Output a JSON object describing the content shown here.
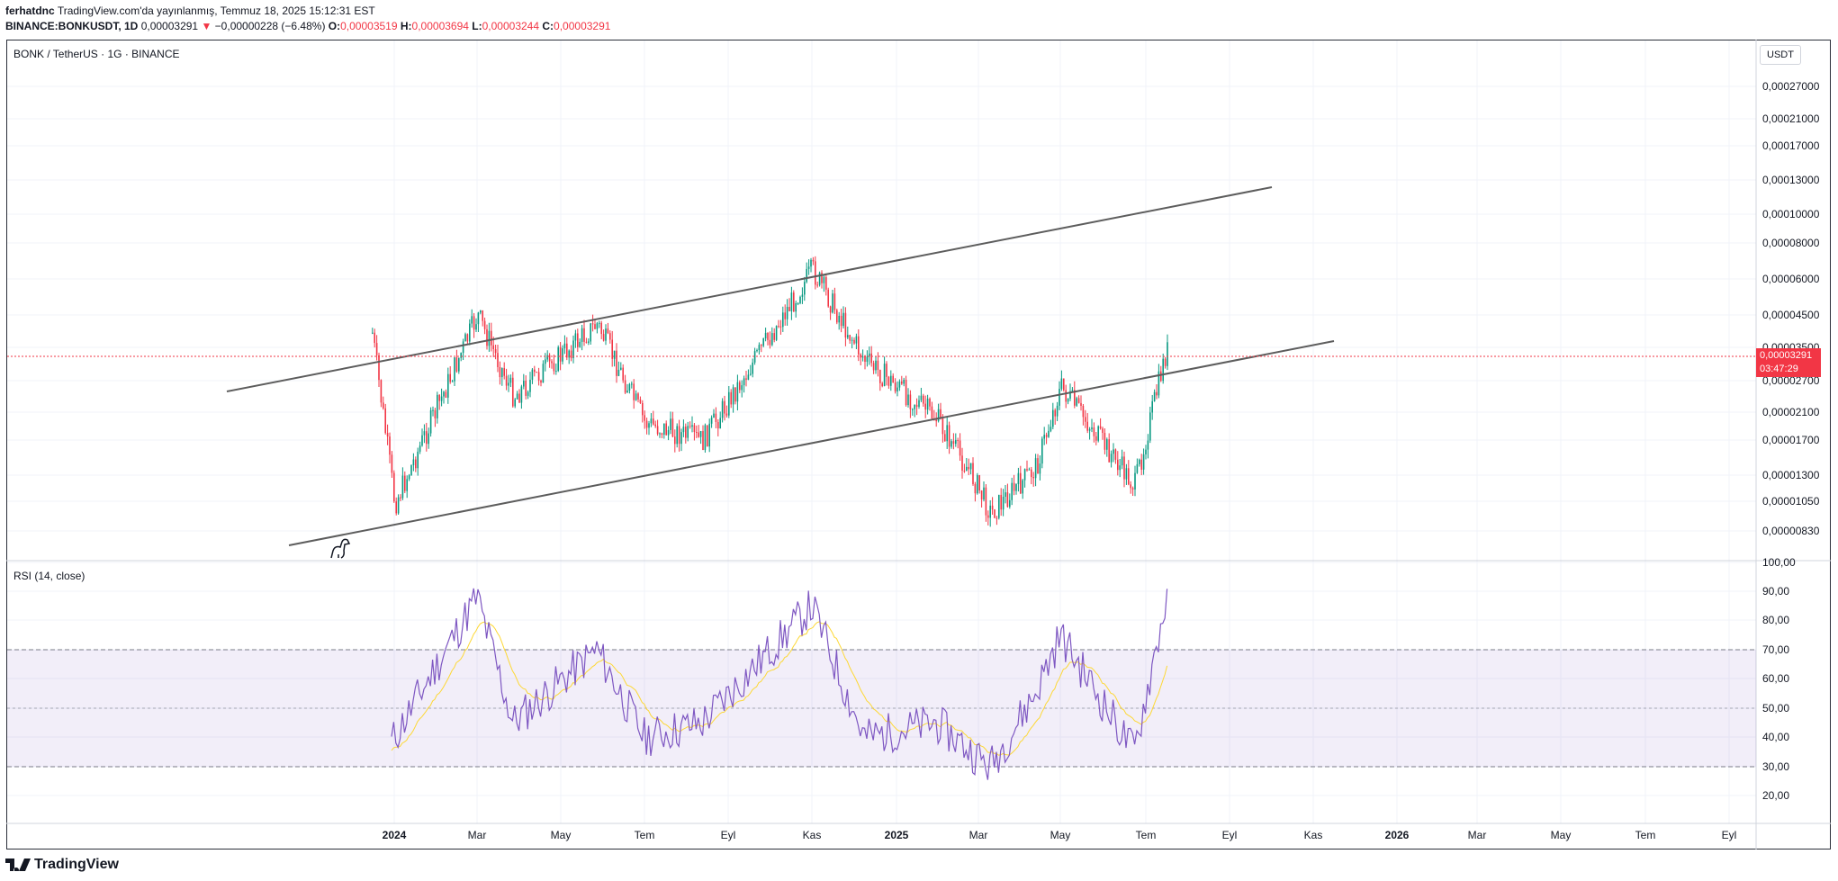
{
  "header": {
    "author": "ferhatdnc",
    "published": "TradingView.com'da yayınlanmış, Temmuz 18, 2025 15:12:31 EST",
    "symbol": "BINANCE:BONKUSDT, 1D",
    "last": "0,00003291",
    "change": "−0,00000228 (−6.48%)",
    "o_label": "O:",
    "o": "0,00003519",
    "h_label": "H:",
    "h": "0,00003694",
    "l_label": "L:",
    "l": "0,00003244",
    "c_label": "C:",
    "c": "0,00003291"
  },
  "chart": {
    "pane_title": "BONK / TetherUS · 1G · BINANCE",
    "currency": "USDT",
    "price_tag": "0,00003291",
    "countdown": "03:47:29",
    "rsi_title": "RSI (14, close)",
    "colors": {
      "up": "#089981",
      "down": "#f23645",
      "rsi": "#7e57c2",
      "rsi_ma": "#fdd835",
      "band": "#7e57c2",
      "trendline": "#5d5d5d"
    }
  },
  "price_axis": [
    "0,00027000",
    "0,00021000",
    "0,00017000",
    "0,00013000",
    "0,00010000",
    "0,00008000",
    "0,00006000",
    "0,00004500",
    "0,00003500",
    "0,00002700",
    "0,00002100",
    "0,00001700",
    "0,00001300",
    "0,00001050",
    "0,00000830"
  ],
  "rsi_axis": [
    "100,00",
    "90,00",
    "80,00",
    "70,00",
    "60,00",
    "50,00",
    "40,00",
    "30,00",
    "20,00"
  ],
  "time_axis": [
    "2024",
    "Mar",
    "May",
    "Tem",
    "Eyl",
    "Kas",
    "2025",
    "Mar",
    "May",
    "Tem",
    "Eyl",
    "Kas",
    "2026",
    "Mar",
    "May",
    "Tem",
    "Eyl"
  ],
  "chart_data": {
    "type": "candlestick",
    "series": [
      {
        "name": "BONK / TetherUS · 1G · BINANCE",
        "x": [
          "2023-12",
          "2024-01",
          "2024-03",
          "2024-04",
          "2024-06",
          "2024-07",
          "2024-09",
          "2024-11",
          "2024-12",
          "2025-01",
          "2025-02",
          "2025-03",
          "2025-04",
          "2025-05",
          "2025-06",
          "2025-07"
        ],
        "close": [
          2e-05,
          1e-05,
          4e-05,
          2.3e-05,
          3.3e-05,
          2.4e-05,
          1.6e-05,
          4.8e-05,
          3.2e-05,
          2.2e-05,
          1.5e-05,
          9e-06,
          1.3e-05,
          2.2e-05,
          1.4e-05,
          3.29e-05
        ]
      },
      {
        "name": "RSI (14, close)",
        "x": [
          "2023-12",
          "2024-01",
          "2024-03",
          "2024-04",
          "2024-06",
          "2024-07",
          "2024-09",
          "2024-11",
          "2024-12",
          "2025-01",
          "2025-02",
          "2025-03",
          "2025-04",
          "2025-05",
          "2025-06",
          "2025-07"
        ],
        "values": [
          25,
          40,
          88,
          45,
          70,
          40,
          45,
          85,
          40,
          45,
          35,
          30,
          55,
          75,
          35,
          86
        ]
      }
    ],
    "log_scale": true,
    "ylim": [
      8e-06,
      3e-05
    ],
    "rsi_bands": [
      70,
      50,
      30
    ]
  }
}
